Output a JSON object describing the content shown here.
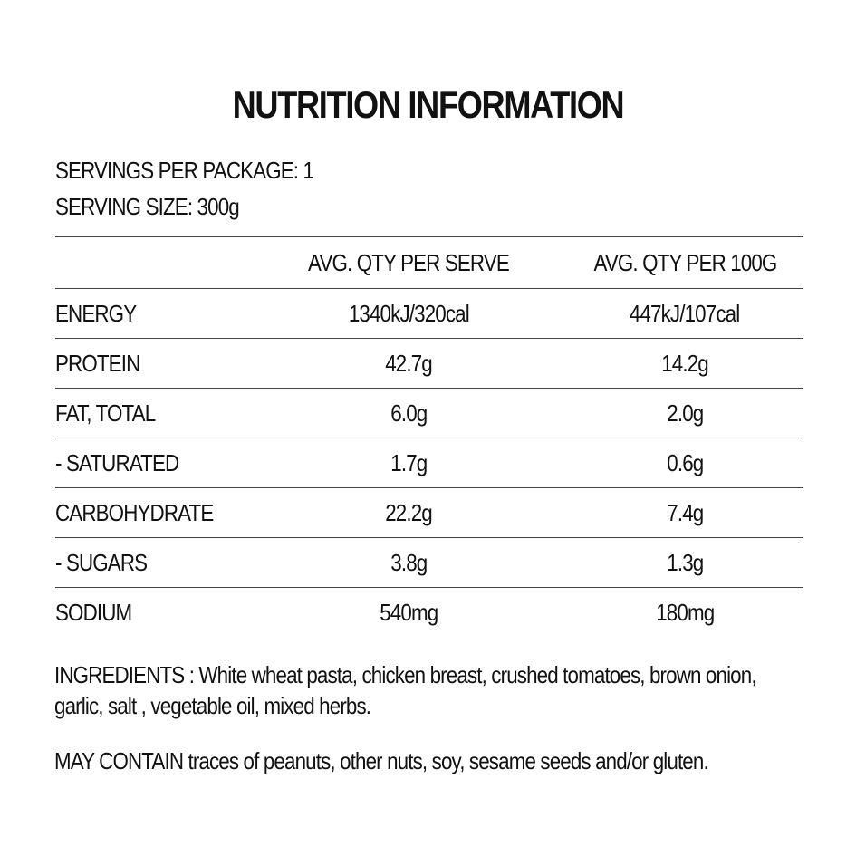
{
  "title": "NUTRITION INFORMATION",
  "servings": {
    "per_package_label": "SERVINGS PER PACKAGE:",
    "per_package_value": "1",
    "size_label": "SERVING SIZE:",
    "size_value": "300g"
  },
  "table": {
    "headers": [
      "",
      "AVG. QTY PER SERVE",
      "AVG. QTY PER 100G"
    ],
    "rows": [
      {
        "nutrient": "ENERGY",
        "per_serve": "1340kJ/320cal",
        "per_100g": "447kJ/107cal"
      },
      {
        "nutrient": "PROTEIN",
        "per_serve": "42.7g",
        "per_100g": "14.2g"
      },
      {
        "nutrient": "FAT, TOTAL",
        "per_serve": "6.0g",
        "per_100g": "2.0g"
      },
      {
        "nutrient": "- SATURATED",
        "per_serve": "1.7g",
        "per_100g": "0.6g"
      },
      {
        "nutrient": "CARBOHYDRATE",
        "per_serve": "22.2g",
        "per_100g": "7.4g"
      },
      {
        "nutrient": "- SUGARS",
        "per_serve": "3.8g",
        "per_100g": "1.3g"
      },
      {
        "nutrient": "SODIUM",
        "per_serve": "540mg",
        "per_100g": "180mg"
      }
    ]
  },
  "ingredients": {
    "label": "INGREDIENTS :",
    "text": "White wheat pasta, chicken breast, crushed tomatoes, brown onion, garlic, salt , vegetable oil, mixed herbs."
  },
  "may_contain": {
    "label": "MAY CONTAIN",
    "text": "traces of peanuts, other nuts, soy, sesame seeds and/or gluten."
  }
}
